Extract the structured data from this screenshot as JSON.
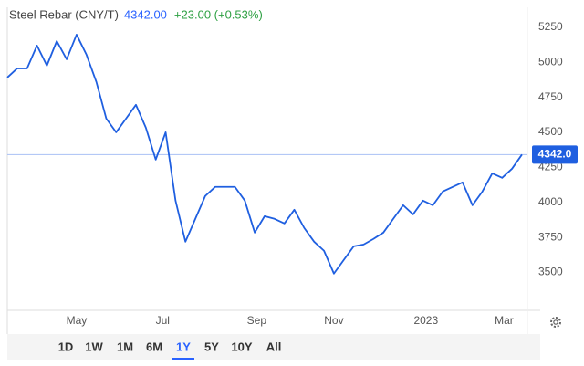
{
  "chart_data": {
    "type": "line",
    "title": "Steel Rebar (CNY/T)",
    "price": "4342.00",
    "change": "+23.00 (+0.53%)",
    "series": [
      {
        "name": "Steel Rebar",
        "color": "#1f5fe0",
        "values": [
          4892,
          4957,
          4957,
          5120,
          4977,
          5152,
          5022,
          5198,
          5055,
          4860,
          4599,
          4501,
          4599,
          4697,
          4534,
          4306,
          4501,
          4013,
          3720,
          3883,
          4046,
          4111,
          4111,
          4111,
          4013,
          3785,
          3902,
          3883,
          3850,
          3948,
          3818,
          3720,
          3655,
          3492,
          3590,
          3687,
          3700,
          3740,
          3785,
          3883,
          3980,
          3915,
          4013,
          3980,
          4078,
          4111,
          4143,
          3980,
          4078,
          4208,
          4176,
          4241,
          4342
        ],
        "value_labels": [
          null,
          null,
          null,
          null,
          null,
          null,
          null,
          null,
          null,
          null,
          null,
          null,
          null,
          null,
          null,
          null,
          null,
          null,
          null,
          null,
          null,
          null,
          null,
          null,
          null,
          null,
          null,
          null,
          null,
          null,
          null,
          null,
          null,
          null,
          null,
          null,
          null,
          null,
          null,
          null,
          null,
          null,
          null,
          null,
          null,
          null,
          null,
          null,
          null,
          null,
          null,
          null,
          "4342.0"
        ]
      }
    ],
    "xlim": [
      0,
      52
    ],
    "xticks": [
      {
        "value": 7,
        "label": "May"
      },
      {
        "value": 15.7,
        "label": "Jul"
      },
      {
        "value": 25.2,
        "label": "Sep"
      },
      {
        "value": 33,
        "label": "Nov"
      },
      {
        "value": 42.3,
        "label": "2023"
      },
      {
        "value": 50.2,
        "label": "Mar"
      }
    ],
    "ylim": [
      3230,
      5380
    ],
    "yticks": [
      3500,
      3750,
      4000,
      4250,
      4500,
      4750,
      5000,
      5250
    ],
    "grid": false
  },
  "range_buttons": [
    {
      "label": "1D",
      "selected": false
    },
    {
      "label": "1W",
      "selected": false
    },
    {
      "label": "1M",
      "selected": false
    },
    {
      "label": "6M",
      "selected": false
    },
    {
      "label": "1Y",
      "selected": true
    },
    {
      "label": "5Y",
      "selected": false
    },
    {
      "label": "10Y",
      "selected": false
    },
    {
      "label": "All",
      "selected": false
    }
  ]
}
